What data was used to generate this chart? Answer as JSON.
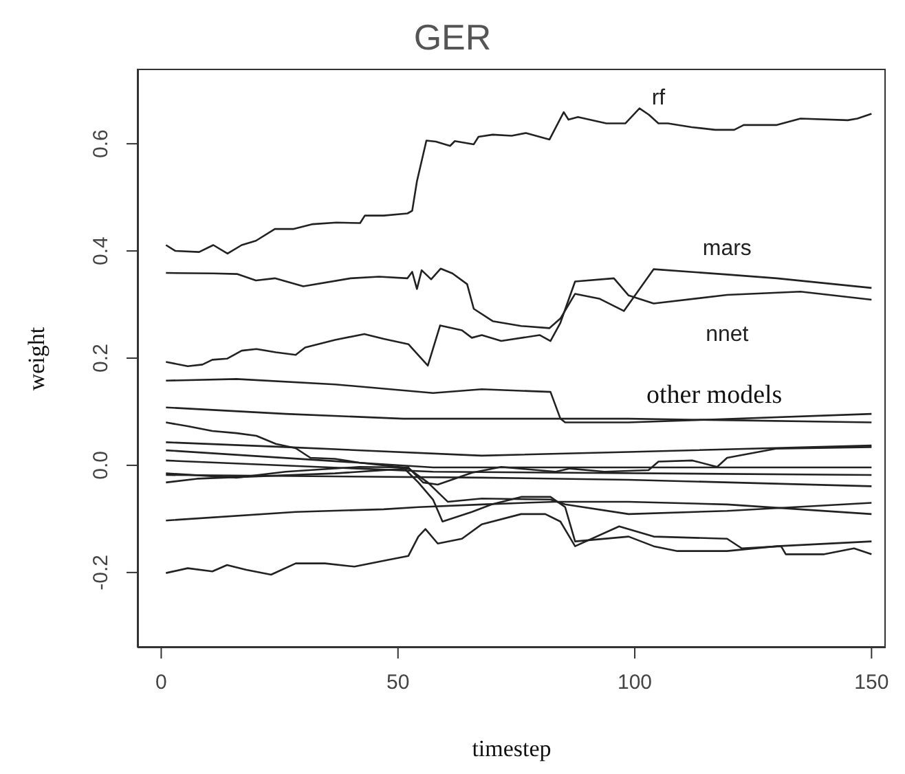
{
  "chart_data": {
    "type": "line",
    "title": "GER",
    "xlabel": "timestep",
    "ylabel": "weight",
    "xlim": [
      -5,
      153
    ],
    "xticks": [
      0,
      50,
      100,
      150
    ],
    "ylim": [
      -0.34,
      0.74
    ],
    "yticks": [
      {
        "value": -0.2,
        "label": "-0.2"
      },
      {
        "value": 0,
        "label": "0.0"
      },
      {
        "value": 0.2,
        "label": "0.2"
      },
      {
        "value": 0.4,
        "label": "0.4"
      },
      {
        "value": 0.6,
        "label": "0.6"
      }
    ],
    "grid": false,
    "annotations": [
      "other models"
    ],
    "series": [
      {
        "name": "rf",
        "color": "#222222",
        "x": [
          1,
          3,
          8,
          11,
          14,
          17,
          20,
          24,
          28,
          32,
          37,
          42,
          43,
          47,
          52,
          53,
          54,
          56,
          58,
          61,
          62,
          66,
          67,
          70,
          74,
          77,
          82,
          85,
          86,
          88,
          94,
          98,
          101,
          103,
          105,
          107,
          112,
          117,
          121,
          123,
          130,
          135,
          145,
          147,
          150
        ],
        "values": [
          0.411,
          0.4,
          0.398,
          0.411,
          0.395,
          0.411,
          0.419,
          0.441,
          0.441,
          0.45,
          0.453,
          0.452,
          0.466,
          0.466,
          0.47,
          0.475,
          0.53,
          0.606,
          0.604,
          0.596,
          0.605,
          0.599,
          0.613,
          0.617,
          0.615,
          0.62,
          0.608,
          0.659,
          0.645,
          0.65,
          0.638,
          0.638,
          0.666,
          0.654,
          0.638,
          0.638,
          0.631,
          0.626,
          0.626,
          0.635,
          0.635,
          0.647,
          0.644,
          0.647,
          0.656
        ]
      },
      {
        "name": "mars",
        "color": "#222222",
        "x": [
          1,
          11,
          16,
          20,
          24,
          30,
          40,
          46,
          52,
          53,
          54,
          55,
          57,
          59,
          61.5,
          64.6,
          66,
          70,
          76,
          82,
          84.3,
          87.4,
          92.5,
          97.7,
          104,
          119.5,
          130,
          150
        ],
        "values": [
          0.359,
          0.358,
          0.357,
          0.345,
          0.349,
          0.334,
          0.349,
          0.352,
          0.349,
          0.361,
          0.329,
          0.364,
          0.347,
          0.367,
          0.358,
          0.338,
          0.292,
          0.269,
          0.26,
          0.256,
          0.274,
          0.32,
          0.311,
          0.288,
          0.366,
          0.356,
          0.349,
          0.331
        ]
      },
      {
        "name": "nnet",
        "color": "#222222",
        "x": [
          1,
          5.6,
          8.7,
          10.8,
          13.9,
          17,
          20.1,
          24.2,
          28.4,
          30.4,
          36.7,
          42.9,
          47,
          52.2,
          56.3,
          58.9,
          63.5,
          65.6,
          67.7,
          71.8,
          79.9,
          82.2,
          84.3,
          87.4,
          95.6,
          98.7,
          104,
          119.5,
          135,
          150
        ],
        "values": [
          0.193,
          0.185,
          0.188,
          0.197,
          0.199,
          0.214,
          0.217,
          0.211,
          0.206,
          0.22,
          0.234,
          0.245,
          0.236,
          0.226,
          0.186,
          0.261,
          0.252,
          0.238,
          0.243,
          0.232,
          0.243,
          0.232,
          0.266,
          0.343,
          0.349,
          0.317,
          0.302,
          0.318,
          0.324,
          0.309
        ]
      },
      {
        "color": "#222222",
        "x": [
          1,
          15.9,
          36.7,
          57.4,
          67.7,
          82.2,
          84.3,
          85.3,
          98.7,
          150
        ],
        "values": [
          0.158,
          0.161,
          0.151,
          0.135,
          0.142,
          0.137,
          0.087,
          0.08,
          0.08,
          0.096
        ]
      },
      {
        "color": "#222222",
        "x": [
          1,
          26.3,
          51.1,
          57.4,
          98.7,
          150
        ],
        "values": [
          0.108,
          0.096,
          0.087,
          0.087,
          0.087,
          0.08
        ]
      },
      {
        "color": "#222222",
        "x": [
          1,
          5.6,
          10.8,
          15.9,
          20.1,
          24.2,
          28.4,
          31.5,
          36.7,
          41.8,
          47,
          51.1,
          54.3,
          57.4,
          59.4,
          65.6,
          69.8,
          76,
          82.2,
          85.3,
          87.4,
          98.7,
          104,
          109,
          119.5,
          130,
          150
        ],
        "values": [
          0.08,
          0.073,
          0.064,
          0.06,
          0.055,
          0.04,
          0.032,
          0.014,
          0.012,
          0.005,
          0,
          -0.004,
          -0.032,
          -0.064,
          -0.105,
          -0.087,
          -0.073,
          -0.059,
          -0.059,
          -0.078,
          -0.142,
          -0.133,
          -0.151,
          -0.16,
          -0.16,
          -0.151,
          -0.142
        ]
      },
      {
        "color": "#222222",
        "x": [
          1,
          5.6,
          10.8,
          13.9,
          18,
          23.2,
          28.4,
          34.6,
          40.8,
          47,
          52.2,
          54.3,
          55.8,
          58.4,
          63.5,
          67.7,
          76,
          81.1,
          84.3,
          87.4,
          96.7,
          104,
          119.5,
          122.6,
          130.9,
          131.9,
          140,
          146.3,
          150
        ],
        "values": [
          -0.201,
          -0.192,
          -0.198,
          -0.186,
          -0.195,
          -0.204,
          -0.183,
          -0.183,
          -0.189,
          -0.178,
          -0.169,
          -0.133,
          -0.119,
          -0.146,
          -0.137,
          -0.11,
          -0.091,
          -0.091,
          -0.105,
          -0.151,
          -0.114,
          -0.133,
          -0.137,
          -0.155,
          -0.151,
          -0.166,
          -0.166,
          -0.155,
          -0.166
        ]
      },
      {
        "color": "#222222",
        "x": [
          1,
          28.4,
          47,
          54.3,
          67.7,
          83,
          98.7,
          119.5,
          150
        ],
        "values": [
          -0.103,
          -0.087,
          -0.082,
          -0.078,
          -0.073,
          -0.068,
          -0.068,
          -0.073,
          -0.091
        ]
      },
      {
        "color": "#222222",
        "x": [
          1,
          26.3,
          67.7,
          98.7,
          150
        ],
        "values": [
          0.043,
          0.034,
          0.018,
          0.025,
          0.037
        ]
      },
      {
        "color": "#222222",
        "x": [
          1,
          57.4,
          150
        ],
        "values": [
          0.028,
          -0.004,
          -0.004
        ]
      },
      {
        "color": "#222222",
        "x": [
          1,
          57.4,
          150
        ],
        "values": [
          0.009,
          -0.012,
          -0.018
        ]
      },
      {
        "color": "#222222",
        "x": [
          1,
          67.7,
          98.7,
          150
        ],
        "values": [
          -0.018,
          -0.023,
          -0.027,
          -0.039
        ]
      },
      {
        "color": "#222222",
        "x": [
          1,
          15.9,
          26.3,
          41.8,
          52.2,
          55.3,
          58.4,
          65.6,
          71.8,
          83.3,
          86.3,
          93.6,
          102.9,
          105,
          112.2,
          117.4,
          119.5,
          129.8,
          150
        ],
        "values": [
          -0.015,
          -0.023,
          -0.012,
          -0.003,
          -0.004,
          -0.032,
          -0.036,
          -0.014,
          -0.003,
          -0.012,
          -0.006,
          -0.012,
          -0.009,
          0.007,
          0.009,
          -0.003,
          0.014,
          0.031,
          0.034
        ]
      },
      {
        "color": "#222222",
        "x": [
          1,
          7.6,
          36.7,
          52.2,
          56.3,
          60.5,
          67.7,
          82.2,
          85.3,
          98.7,
          119.5,
          150
        ],
        "values": [
          -0.032,
          -0.025,
          -0.015,
          -0.006,
          -0.032,
          -0.068,
          -0.062,
          -0.064,
          -0.073,
          -0.091,
          -0.085,
          -0.07
        ]
      }
    ]
  }
}
